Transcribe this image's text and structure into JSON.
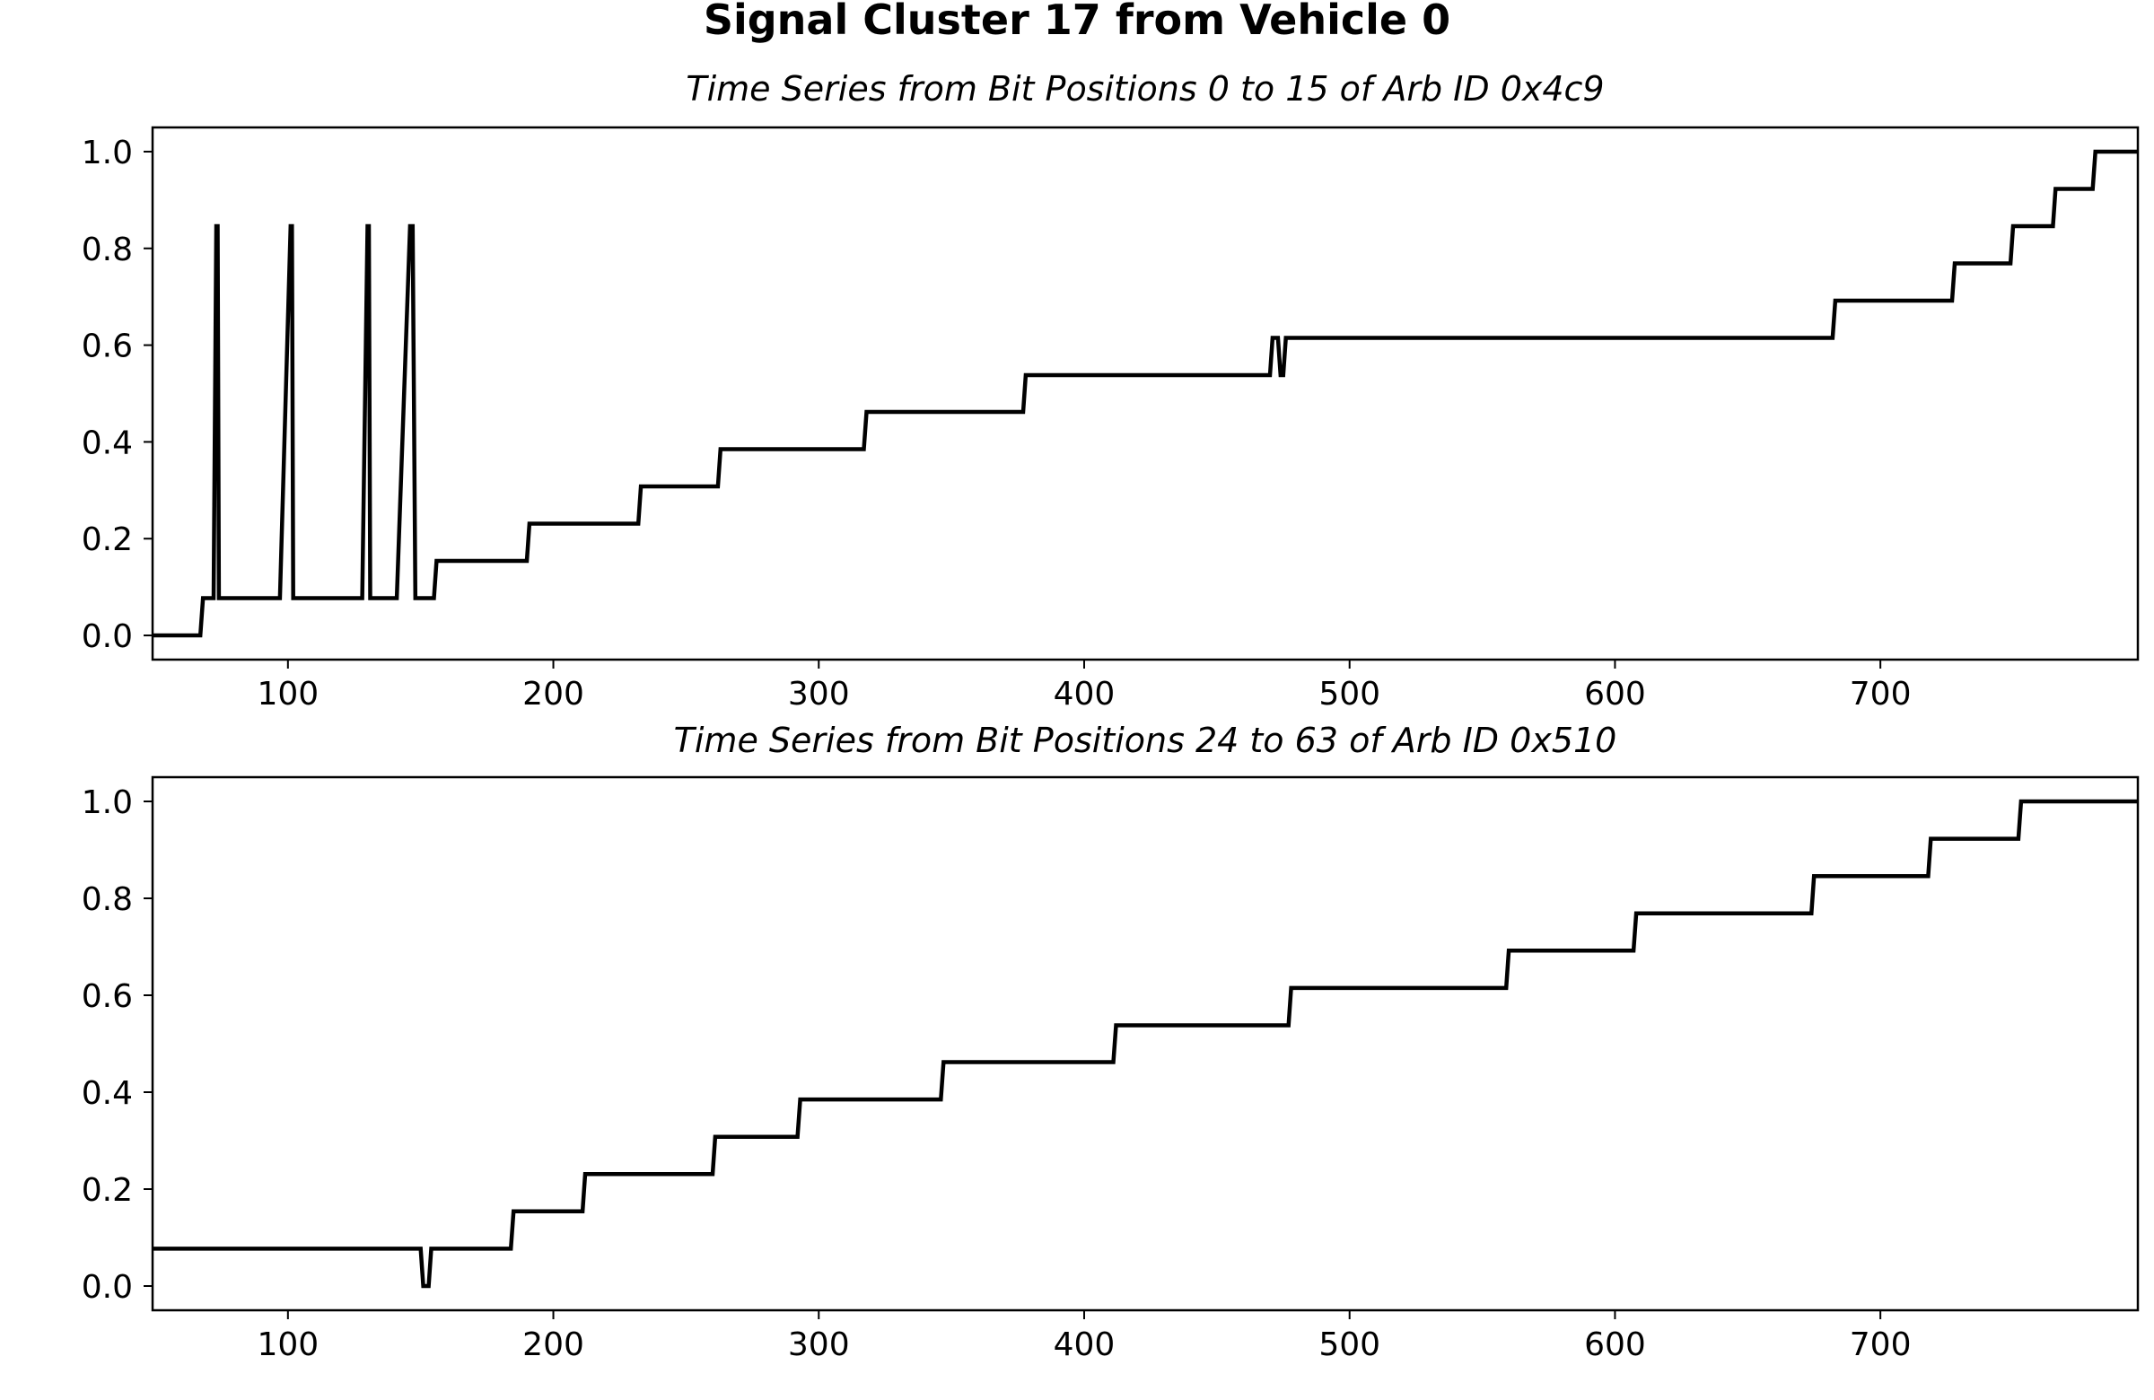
{
  "figure": {
    "title": "Signal Cluster 17 from Vehicle 0"
  },
  "chart_data": [
    {
      "type": "line",
      "step": true,
      "title": "Time Series from Bit Positions 0 to 15 of Arb ID 0x4c9",
      "xlabel": "",
      "ylabel": "",
      "xlim": [
        49,
        797
      ],
      "ylim": [
        -0.05,
        1.05
      ],
      "xticks": [
        100,
        200,
        300,
        400,
        500,
        600,
        700
      ],
      "xtick_labels": [
        "100",
        "200",
        "300",
        "400",
        "500",
        "600",
        "700"
      ],
      "yticks": [
        0.0,
        0.2,
        0.4,
        0.6,
        0.8,
        1.0
      ],
      "ytick_labels": [
        "0.0",
        "0.2",
        "0.4",
        "0.6",
        "0.8",
        "1.0"
      ],
      "grid": false,
      "series": [
        {
          "color": "#000000",
          "x": [
            49,
            67,
            68,
            72,
            73,
            73.5,
            74,
            97,
            101,
            101.5,
            102,
            128,
            130,
            130.5,
            131,
            141,
            146,
            147,
            148,
            155,
            156,
            190,
            191,
            232,
            233,
            262,
            263,
            317,
            318,
            377,
            378,
            470,
            471,
            473,
            474,
            475,
            476,
            682,
            683,
            727,
            728,
            749,
            750,
            765,
            766,
            780,
            781,
            797
          ],
          "y": [
            0,
            0,
            0.077,
            0.077,
            0.846,
            0.846,
            0.077,
            0.077,
            0.846,
            0.846,
            0.077,
            0.077,
            0.846,
            0.846,
            0.077,
            0.077,
            0.846,
            0.846,
            0.077,
            0.077,
            0.154,
            0.154,
            0.231,
            0.231,
            0.308,
            0.308,
            0.385,
            0.385,
            0.462,
            0.462,
            0.538,
            0.538,
            0.615,
            0.615,
            0.538,
            0.538,
            0.615,
            0.615,
            0.692,
            0.692,
            0.769,
            0.769,
            0.846,
            0.846,
            0.923,
            0.923,
            1.0,
            1.0
          ]
        }
      ]
    },
    {
      "type": "line",
      "step": true,
      "title": "Time Series from Bit Positions 24 to 63 of Arb ID 0x510",
      "xlabel": "",
      "ylabel": "",
      "xlim": [
        49,
        797
      ],
      "ylim": [
        -0.05,
        1.05
      ],
      "xticks": [
        100,
        200,
        300,
        400,
        500,
        600,
        700
      ],
      "xtick_labels": [
        "100",
        "200",
        "300",
        "400",
        "500",
        "600",
        "700"
      ],
      "yticks": [
        0.0,
        0.2,
        0.4,
        0.6,
        0.8,
        1.0
      ],
      "ytick_labels": [
        "0.0",
        "0.2",
        "0.4",
        "0.6",
        "0.8",
        "1.0"
      ],
      "grid": false,
      "series": [
        {
          "color": "#000000",
          "x": [
            49,
            150,
            151,
            153,
            154,
            184,
            185,
            211,
            212,
            260,
            261,
            292,
            293,
            346,
            347,
            411,
            412,
            477,
            478,
            559,
            560,
            607,
            608,
            674,
            675,
            718,
            719,
            752,
            753,
            797
          ],
          "y": [
            0.077,
            0.077,
            0,
            0,
            0.077,
            0.077,
            0.154,
            0.154,
            0.231,
            0.231,
            0.308,
            0.308,
            0.385,
            0.385,
            0.462,
            0.462,
            0.538,
            0.538,
            0.615,
            0.615,
            0.692,
            0.692,
            0.769,
            0.769,
            0.846,
            0.846,
            0.923,
            0.923,
            1.0,
            1.0
          ]
        }
      ]
    }
  ]
}
